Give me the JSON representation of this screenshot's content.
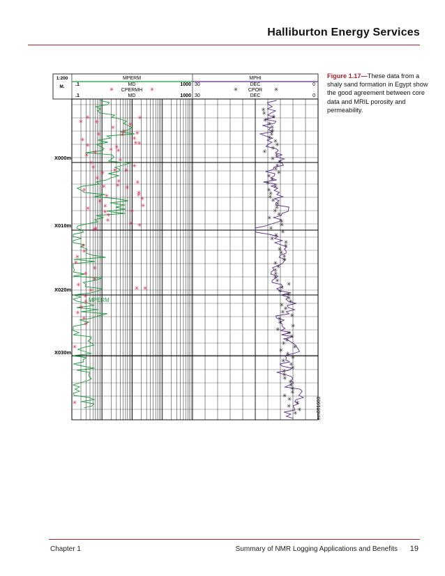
{
  "header": {
    "title": "Halliburton Energy Services"
  },
  "caption": {
    "figure": "Figure 1.17—",
    "text": "These data from a shaly sand formation in Egypt show the good agreement between core data and MRIL porosity and permeability."
  },
  "log": {
    "scale": "1:200",
    "unit": "M.",
    "perm_track": {
      "curve_name": "MPERM",
      "curve_unit": "MD",
      "curve_min": ".1",
      "curve_max": "1000",
      "core_name": "CPERMH",
      "core_unit": "MD",
      "core_min": ".1",
      "core_max": "1000",
      "in_track_label": "MPERM"
    },
    "phi_track": {
      "curve_name": "MPHI",
      "curve_unit": "DEC",
      "curve_left": "30",
      "curve_right": "0",
      "core_name": "CPOR",
      "core_unit": "DEC",
      "core_left": "30",
      "core_right": "0"
    },
    "depths": [
      "X000m",
      "X010m",
      "X020m",
      "X030m"
    ],
    "image_id": "em001603",
    "colors": {
      "mperm": "#1a9a3a",
      "cperm": "#d8204a",
      "mphi": "#5a2a8a",
      "cpor": "#222222"
    }
  },
  "footer": {
    "chapter": "Chapter 1",
    "title": "Summary of NMR Logging Applications and Benefits",
    "page": "19"
  }
}
